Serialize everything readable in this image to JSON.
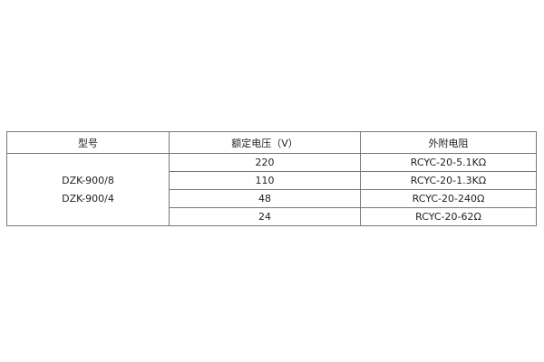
{
  "table": {
    "headers": [
      "型号",
      "额定电压（V）",
      "外附电阻"
    ],
    "models": [
      "DZK-900/8",
      "DZK-900/4"
    ],
    "rows": [
      {
        "voltage": "220",
        "resistor": "RCYC-20-5.1KΩ"
      },
      {
        "voltage": "110",
        "resistor": "RCYC-20-1.3KΩ"
      },
      {
        "voltage": "48",
        "resistor": "RCYC-20-240Ω"
      },
      {
        "voltage": "24",
        "resistor": "RCYC-20-62Ω"
      }
    ]
  }
}
